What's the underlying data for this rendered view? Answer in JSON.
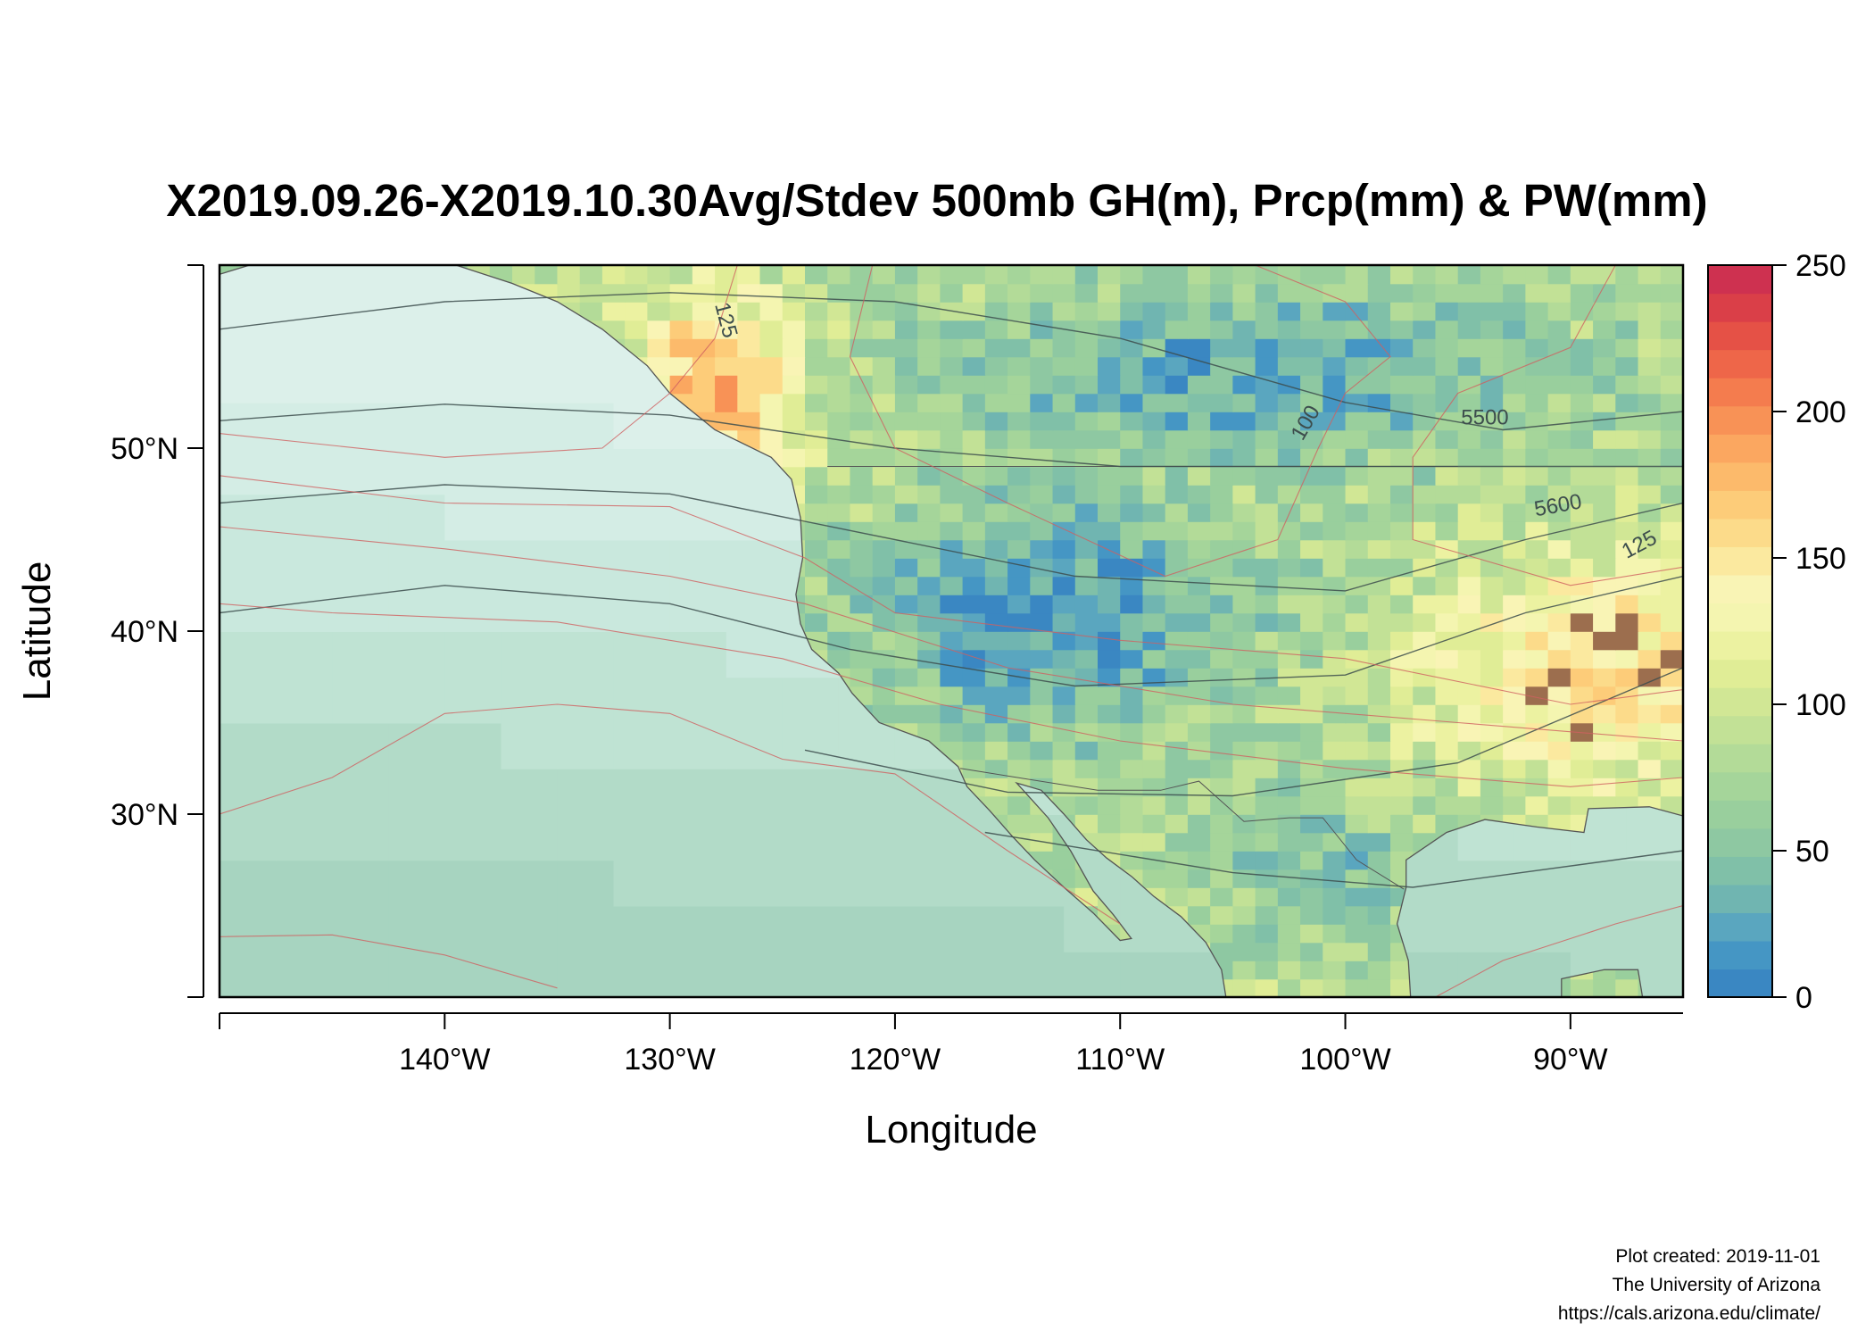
{
  "title": "X2019.09.26-X2019.10.30Avg/Stdev 500mb GH(m), Prcp(mm) & PW(mm)",
  "map": {
    "lon_range": [
      -150,
      -85
    ],
    "lat_range": [
      20,
      60
    ],
    "x_axis": {
      "label": "Longitude",
      "ticks": [
        {
          "value": -140,
          "label": "140°W"
        },
        {
          "value": -130,
          "label": "130°W"
        },
        {
          "value": -120,
          "label": "120°W"
        },
        {
          "value": -110,
          "label": "110°W"
        },
        {
          "value": -100,
          "label": "100°W"
        },
        {
          "value": -90,
          "label": "90°W"
        }
      ]
    },
    "y_axis": {
      "label": "Latitude",
      "ticks": [
        {
          "value": 30,
          "label": "30°N"
        },
        {
          "value": 40,
          "label": "40°N"
        },
        {
          "value": 50,
          "label": "50°N"
        }
      ]
    },
    "contour_labels": [
      {
        "text": "5500",
        "lon": -93.8,
        "lat": 51.3
      },
      {
        "text": "5600",
        "lon": -90.5,
        "lat": 46.5
      },
      {
        "text": "100",
        "lon": -101.5,
        "lat": 51.2
      },
      {
        "text": "125",
        "lon": -127.8,
        "lat": 56.9
      },
      {
        "text": "125",
        "lon": -86.8,
        "lat": 44.4
      }
    ],
    "colors": {
      "land_dry": "#74acd1",
      "ocean_pw": "#c8e8dd",
      "gh_contour": "#3d4d4d",
      "prcp_contour": "#d06060",
      "coast": "#555555"
    }
  },
  "colorbar": {
    "min": 0,
    "max": 250,
    "ticks": [
      {
        "value": 0,
        "label": "0"
      },
      {
        "value": 50,
        "label": "50"
      },
      {
        "value": 100,
        "label": "100"
      },
      {
        "value": 150,
        "label": "150"
      },
      {
        "value": 200,
        "label": "200"
      },
      {
        "value": 250,
        "label": "250"
      }
    ],
    "colors": [
      "#3a87c2",
      "#4596c4",
      "#5aa6bf",
      "#70b5b1",
      "#80c0a8",
      "#8ec8a2",
      "#99cf9d",
      "#a5d59a",
      "#b3db98",
      "#c2e196",
      "#d1e795",
      "#e0ed96",
      "#ecf2a1",
      "#f4f5b0",
      "#f9f4b5",
      "#fbe99f",
      "#fcdb8a",
      "#fdcc79",
      "#fcba6b",
      "#fba760",
      "#f89256",
      "#f47c4e",
      "#ee6649",
      "#e55146",
      "#da3f48",
      "#ce3150"
    ]
  },
  "credit": {
    "line1": "Plot created: 2019-11-01",
    "line2": "The University of Arizona",
    "line3": "https://cals.arizona.edu/climate/"
  }
}
